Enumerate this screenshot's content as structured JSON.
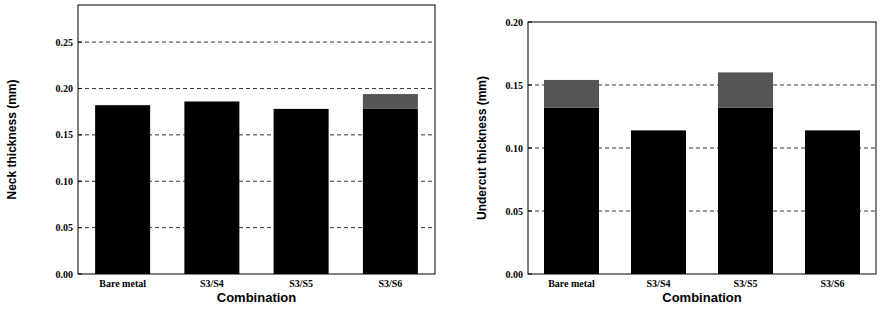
{
  "chart_data": [
    {
      "type": "bar",
      "stacked": true,
      "grid": true,
      "x_label": "Combination",
      "y_label": "Neck thickness (mm)",
      "categories": [
        "Bare metal",
        "S3/S4",
        "S3/S5",
        "S3/S6"
      ],
      "series": [
        {
          "color": "#000000",
          "values": [
            0.182,
            0.186,
            0.178,
            0.178
          ]
        },
        {
          "color": "#555555",
          "values": [
            null,
            null,
            null,
            0.016
          ]
        }
      ],
      "ylim": [
        0,
        0.29
      ],
      "yticks": [
        {
          "value": 0,
          "label": "0.00"
        },
        {
          "value": 0.05,
          "label": "0.05"
        },
        {
          "value": 0.1,
          "label": "0.10"
        },
        {
          "value": 0.15,
          "label": "0.15"
        },
        {
          "value": 0.2,
          "label": "0.20"
        },
        {
          "value": 0.25,
          "label": "0.25"
        }
      ]
    },
    {
      "type": "bar",
      "stacked": true,
      "grid": true,
      "x_label": "Combination",
      "y_label": "Undercut thickness (mm)",
      "categories": [
        "Bare metal",
        "S3/S4",
        "S3/S5",
        "S3/S6"
      ],
      "series": [
        {
          "color": "#000000",
          "values": [
            0.132,
            0.114,
            0.132,
            0.114
          ]
        },
        {
          "color": "#555555",
          "values": [
            0.022,
            null,
            0.028,
            null
          ]
        }
      ],
      "ylim": [
        0,
        0.2
      ],
      "yticks": [
        {
          "value": 0,
          "label": "0.00"
        },
        {
          "value": 0.05,
          "label": "0.05"
        },
        {
          "value": 0.1,
          "label": "0.10"
        },
        {
          "value": 0.15,
          "label": "0.15"
        },
        {
          "value": 0.2,
          "label": "0.20"
        }
      ]
    }
  ]
}
